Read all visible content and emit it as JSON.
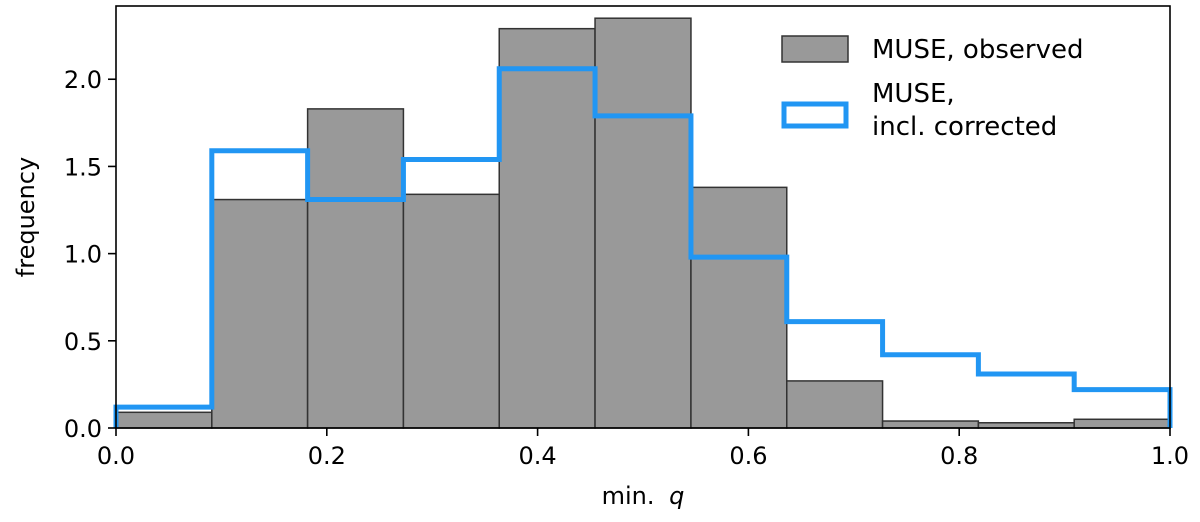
{
  "chart_data": {
    "type": "bar",
    "xlabel": "min.",
    "xlabel_var": "q",
    "ylabel": "frequency",
    "xlim": [
      0.0,
      1.0
    ],
    "ylim": [
      0.0,
      2.42
    ],
    "xticks": [
      "0.0",
      "0.2",
      "0.4",
      "0.6",
      "0.8",
      "1.0"
    ],
    "xtick_values": [
      0.0,
      0.2,
      0.4,
      0.6,
      0.8,
      1.0
    ],
    "yticks": [
      "0.0",
      "0.5",
      "1.0",
      "1.5",
      "2.0"
    ],
    "ytick_values": [
      0.0,
      0.5,
      1.0,
      1.5,
      2.0
    ],
    "bin_edges": [
      0.0,
      0.0909,
      0.1818,
      0.2727,
      0.3636,
      0.4545,
      0.5455,
      0.6364,
      0.7273,
      0.8182,
      0.9091,
      1.0
    ],
    "grid": false,
    "legend_position": "top-right",
    "series": [
      {
        "name": "MUSE, observed",
        "style": "filled-bars",
        "color": "#999999",
        "edge_color": "#333333",
        "values": [
          0.09,
          1.31,
          1.83,
          1.34,
          2.29,
          2.35,
          1.38,
          0.27,
          0.04,
          0.03,
          0.05
        ]
      },
      {
        "name": "MUSE,\nincl. corrected",
        "style": "step",
        "color": "#2196f3",
        "values": [
          0.12,
          1.59,
          1.31,
          1.54,
          2.06,
          1.79,
          0.98,
          0.61,
          0.42,
          0.31,
          0.22
        ]
      }
    ]
  }
}
